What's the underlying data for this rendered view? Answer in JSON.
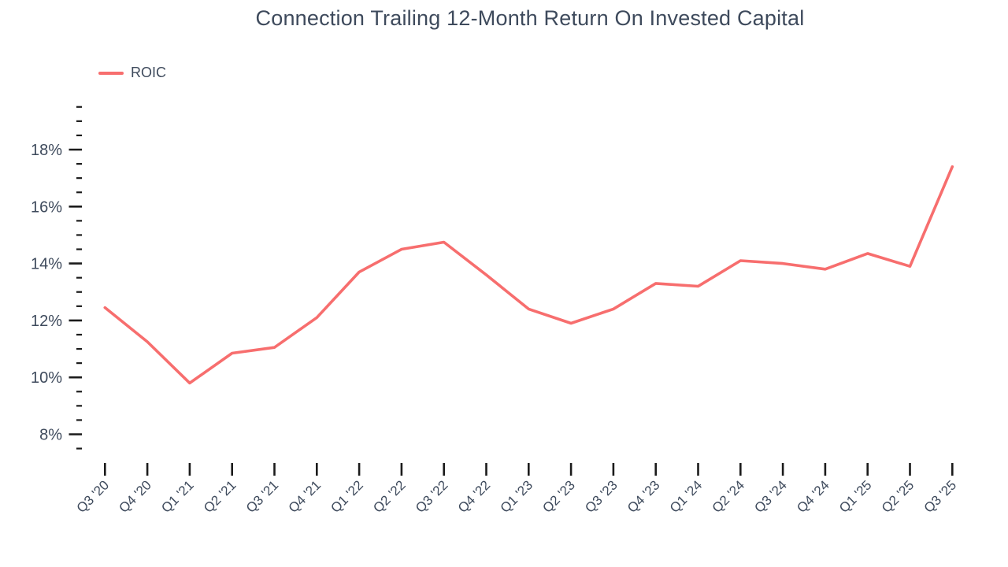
{
  "title": "Connection Trailing 12-Month Return On Invested Capital",
  "legend": {
    "items": [
      {
        "label": "ROIC",
        "color": "#f76e6e"
      }
    ]
  },
  "chart_data": {
    "type": "line",
    "title": "Connection Trailing 12-Month Return On Invested Capital",
    "categories": [
      "Q3 '20",
      "Q4 '20",
      "Q1 '21",
      "Q2 '21",
      "Q3 '21",
      "Q4 '21",
      "Q1 '22",
      "Q2 '22",
      "Q3 '22",
      "Q4 '22",
      "Q1 '23",
      "Q2 '23",
      "Q3 '23",
      "Q4 '23",
      "Q1 '24",
      "Q2 '24",
      "Q3 '24",
      "Q4 '24",
      "Q1 '25",
      "Q2 '25",
      "Q3 '25"
    ],
    "series": [
      {
        "name": "ROIC",
        "color": "#f76e6e",
        "values": [
          12.45,
          11.25,
          9.8,
          10.85,
          11.05,
          12.1,
          13.7,
          14.5,
          14.75,
          13.6,
          12.4,
          11.9,
          12.4,
          13.3,
          13.2,
          14.1,
          14.0,
          13.8,
          14.35,
          13.9,
          17.4
        ]
      }
    ],
    "xlabel": "",
    "ylabel": "",
    "ylim": [
      7.5,
      19.5
    ],
    "y_major_ticks": [
      8,
      10,
      12,
      14,
      16,
      18
    ],
    "y_minor_step": 0.5,
    "y_tick_format": "{v}%",
    "grid": false,
    "legend_position": "top-left",
    "colors": {
      "text": "#3e4a5c",
      "tick": "#1b1b1b",
      "background": "#ffffff"
    }
  }
}
